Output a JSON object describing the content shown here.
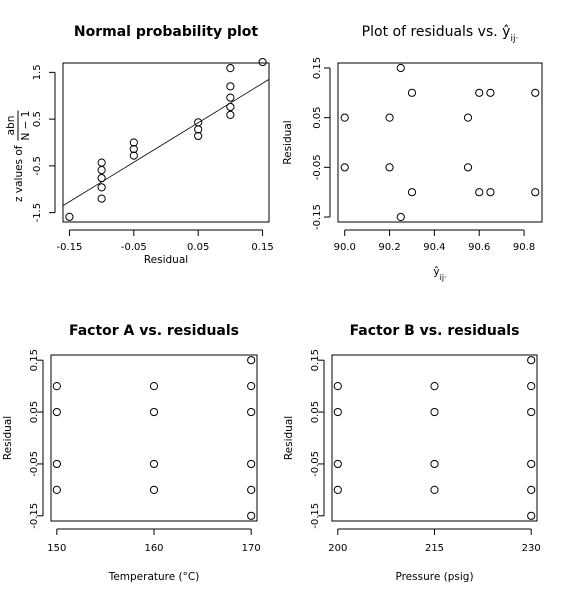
{
  "chart_data": [
    {
      "type": "scatter",
      "title": "Normal probability plot",
      "xlabel": "Residual",
      "ylabel_prefix": "z values of",
      "ylabel_frac_num": "abn",
      "ylabel_frac_den": "N − 1",
      "xlim": [
        -0.16,
        0.16
      ],
      "ylim": [
        -1.7,
        1.7
      ],
      "xticks": [
        -0.15,
        -0.05,
        0.05,
        0.15
      ],
      "xtick_labels": [
        "-0.15",
        "-0.05",
        "0.05",
        "0.15"
      ],
      "yticks": [
        -1.5,
        -0.5,
        0.5,
        1.5
      ],
      "ytick_labels": [
        "-1.5",
        "-0.5",
        "0.5",
        "1.5"
      ],
      "series": [
        {
          "x": [
            -0.15,
            -0.1,
            -0.1,
            -0.1,
            -0.1,
            -0.1,
            -0.05,
            -0.05,
            -0.05,
            0.05,
            0.05,
            0.05,
            0.1,
            0.1,
            0.1,
            0.1,
            0.1,
            0.15
          ],
          "y": [
            -1.59,
            -1.2,
            -0.96,
            -0.76,
            -0.59,
            -0.43,
            -0.28,
            -0.14,
            0.0,
            0.14,
            0.28,
            0.43,
            0.59,
            0.76,
            0.96,
            1.2,
            1.59,
            1.72
          ]
        }
      ],
      "reference_line": {
        "x": [
          -0.16,
          0.16
        ],
        "y": [
          -1.35,
          1.35
        ]
      },
      "grid": false
    },
    {
      "type": "scatter",
      "title": "Plot of residuals vs.",
      "title_math": "ŷ",
      "title_math_sub": "ij·",
      "xlabel": "ŷ",
      "xlabel_sub": "ij·",
      "ylabel": "Residual",
      "xlim": [
        89.97,
        90.88
      ],
      "ylim": [
        -0.16,
        0.16
      ],
      "xticks": [
        90.0,
        90.2,
        90.4,
        90.6,
        90.8
      ],
      "xtick_labels": [
        "90.0",
        "90.2",
        "90.4",
        "90.6",
        "90.8"
      ],
      "yticks": [
        -0.15,
        -0.05,
        0.05,
        0.15
      ],
      "ytick_labels": [
        "-0.15",
        "-0.05",
        "0.05",
        "0.15"
      ],
      "series": [
        {
          "x": [
            90.0,
            90.0,
            90.2,
            90.2,
            90.25,
            90.25,
            90.3,
            90.3,
            90.55,
            90.55,
            90.6,
            90.6,
            90.65,
            90.65,
            90.85,
            90.85
          ],
          "y": [
            0.05,
            -0.05,
            0.05,
            -0.05,
            0.15,
            -0.15,
            0.1,
            -0.1,
            0.05,
            -0.05,
            0.1,
            -0.1,
            0.1,
            -0.1,
            0.1,
            -0.1
          ]
        }
      ],
      "grid": false
    },
    {
      "type": "scatter",
      "title": "Factor A vs. residuals",
      "xlabel": "Temperature (°C)",
      "ylabel": "Residual",
      "xlim": [
        149.4,
        170.6
      ],
      "ylim": [
        -0.16,
        0.16
      ],
      "xticks": [
        150,
        160,
        170
      ],
      "xtick_labels": [
        "150",
        "160",
        "170"
      ],
      "yticks": [
        -0.15,
        -0.05,
        0.05,
        0.15
      ],
      "ytick_labels": [
        "-0.15",
        "-0.05",
        "0.05",
        "0.15"
      ],
      "series": [
        {
          "x": [
            150,
            150,
            150,
            150,
            160,
            160,
            160,
            160,
            170,
            170,
            170,
            170,
            170,
            170
          ],
          "y": [
            0.1,
            0.05,
            -0.05,
            -0.1,
            0.1,
            0.05,
            -0.05,
            -0.1,
            0.15,
            0.1,
            0.05,
            -0.05,
            -0.1,
            -0.15
          ]
        }
      ],
      "grid": false
    },
    {
      "type": "scatter",
      "title": "Factor B vs. residuals",
      "xlabel": "Pressure (psig)",
      "ylabel": "Residual",
      "xlim": [
        199.1,
        230.9
      ],
      "ylim": [
        -0.16,
        0.16
      ],
      "xticks": [
        200,
        215,
        230
      ],
      "xtick_labels": [
        "200",
        "215",
        "230"
      ],
      "yticks": [
        -0.15,
        -0.05,
        0.05,
        0.15
      ],
      "ytick_labels": [
        "-0.15",
        "-0.05",
        "0.05",
        "0.15"
      ],
      "series": [
        {
          "x": [
            200,
            200,
            200,
            200,
            215,
            215,
            215,
            215,
            230,
            230,
            230,
            230,
            230,
            230
          ],
          "y": [
            0.1,
            0.05,
            -0.05,
            -0.1,
            0.1,
            0.05,
            -0.05,
            -0.1,
            0.15,
            0.1,
            0.05,
            -0.05,
            -0.1,
            -0.15
          ]
        }
      ],
      "grid": false
    }
  ]
}
